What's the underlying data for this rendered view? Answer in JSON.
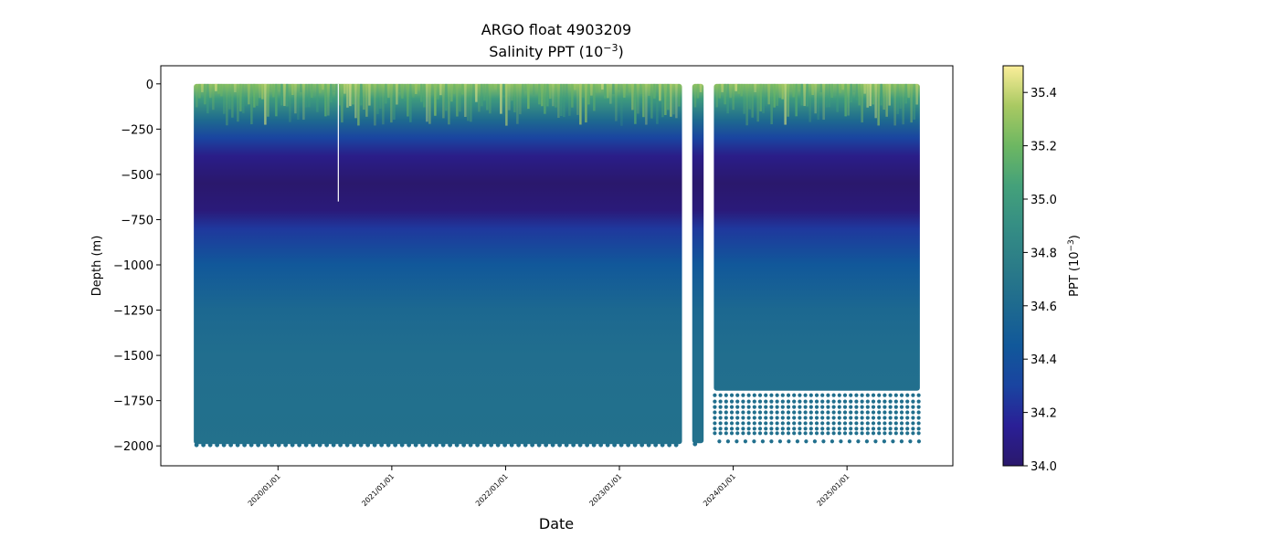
{
  "chart_data": {
    "type": "scatter",
    "title_line1": "ARGO float 4903209",
    "title_line2_prefix": "Salinity PPT (10",
    "title_line2_exp": "−3",
    "title_line2_suffix": ")",
    "xlabel": "Date",
    "ylabel": "Depth (m)",
    "x_range_years": [
      2019.26,
      2025.64
    ],
    "xlim_years": [
      2018.97,
      2025.93
    ],
    "ylim": [
      -2110,
      100
    ],
    "y_ticks": [
      0,
      -250,
      -500,
      -750,
      -1000,
      -1250,
      -1500,
      -1750,
      -2000
    ],
    "y_tick_labels": [
      "0",
      "−250",
      "−500",
      "−750",
      "−1000",
      "−1250",
      "−1500",
      "−1750",
      "−2000"
    ],
    "x_ticks": [
      {
        "year": 2020.0,
        "label": "2020/01/01"
      },
      {
        "year": 2021.0,
        "label": "2021/01/01"
      },
      {
        "year": 2022.0,
        "label": "2022/01/01"
      },
      {
        "year": 2023.0,
        "label": "2023/01/01"
      },
      {
        "year": 2024.0,
        "label": "2024/01/01"
      },
      {
        "year": 2025.0,
        "label": "2025/01/01"
      }
    ],
    "data_segments": [
      {
        "start": 2019.26,
        "end": 2023.55,
        "max_depth": -1990
      },
      {
        "start": 2023.64,
        "end": 2023.74,
        "max_depth": -1985
      },
      {
        "start": 2023.83,
        "end": 2025.64,
        "max_depth": -1695
      }
    ],
    "gap_line": {
      "year": 2020.53,
      "depth_from": 0,
      "depth_to": -650
    },
    "salinity_profile": [
      {
        "depth": 0,
        "value": 35.3
      },
      {
        "depth": -80,
        "value": 35.0
      },
      {
        "depth": -200,
        "value": 34.6
      },
      {
        "depth": -300,
        "value": 34.3
      },
      {
        "depth": -400,
        "value": 34.1
      },
      {
        "depth": -550,
        "value": 34.0
      },
      {
        "depth": -700,
        "value": 34.05
      },
      {
        "depth": -800,
        "value": 34.25
      },
      {
        "depth": -1000,
        "value": 34.45
      },
      {
        "depth": -1250,
        "value": 34.58
      },
      {
        "depth": -1500,
        "value": 34.63
      },
      {
        "depth": -2000,
        "value": 34.66
      }
    ],
    "deep_sample_depths": [
      -1720,
      -1755,
      -1785,
      -1815,
      -1845,
      -1875,
      -1905,
      -1930,
      -1975
    ],
    "colorbar": {
      "label_prefix": "PPT (10",
      "label_exp": "−3",
      "label_suffix": ")",
      "min": 34.0,
      "max": 35.5,
      "colormap": "haline",
      "ticks": [
        34.0,
        34.2,
        34.4,
        34.6,
        34.8,
        35.0,
        35.2,
        35.4
      ],
      "tick_labels": [
        "34.0",
        "34.2",
        "34.4",
        "34.6",
        "34.8",
        "35.0",
        "35.2",
        "35.4"
      ],
      "stops": [
        {
          "v": 0.0,
          "color": "#2a186c"
        },
        {
          "v": 0.1,
          "color": "#2a1f96"
        },
        {
          "v": 0.2,
          "color": "#1a44a0"
        },
        {
          "v": 0.3,
          "color": "#11589a"
        },
        {
          "v": 0.4,
          "color": "#1e6a8f"
        },
        {
          "v": 0.5,
          "color": "#2b7c88"
        },
        {
          "v": 0.6,
          "color": "#358e84"
        },
        {
          "v": 0.7,
          "color": "#44a17a"
        },
        {
          "v": 0.8,
          "color": "#6db762"
        },
        {
          "v": 0.9,
          "color": "#a9c962"
        },
        {
          "v": 1.0,
          "color": "#fbee9a"
        }
      ]
    }
  }
}
